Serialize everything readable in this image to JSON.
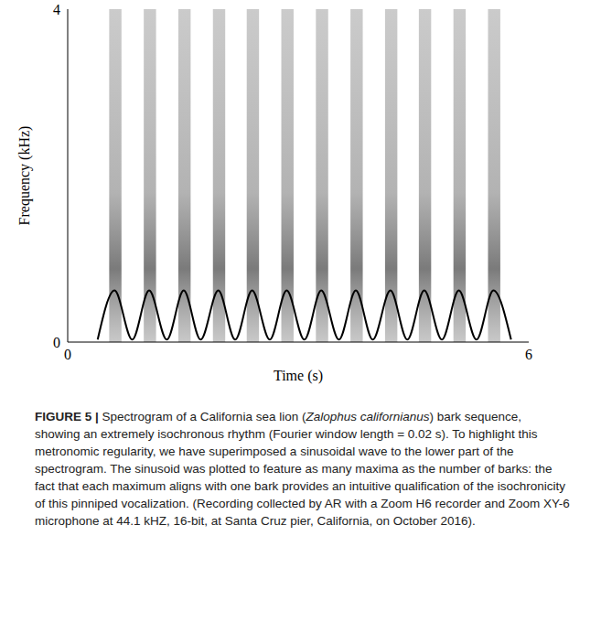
{
  "chart_data": {
    "type": "line",
    "x_label": "Time (s)",
    "y_label": "Frequency (kHz)",
    "x": [
      0.39,
      0.61,
      0.84,
      1.06,
      1.29,
      1.51,
      1.73,
      1.96,
      2.18,
      2.4,
      2.63,
      2.85,
      3.08,
      3.3,
      3.53,
      3.75,
      3.97,
      4.2,
      4.42,
      4.64,
      4.87,
      5.09,
      5.32,
      5.54,
      5.77
    ],
    "values": [
      0.03,
      0.62,
      0.03,
      0.62,
      0.03,
      0.62,
      0.03,
      0.62,
      0.03,
      0.62,
      0.03,
      0.62,
      0.03,
      0.62,
      0.03,
      0.62,
      0.03,
      0.62,
      0.03,
      0.62,
      0.03,
      0.62,
      0.03,
      0.62,
      0.03
    ],
    "color": "#000000",
    "xlim": [
      0,
      6
    ],
    "ylim": [
      0,
      4
    ],
    "xticks": [
      0,
      6
    ],
    "yticks": [
      0,
      4
    ],
    "barks": {
      "start": [
        0.54,
        0.99,
        1.44,
        1.89,
        2.33,
        2.78,
        3.23,
        3.68,
        4.13,
        4.57,
        5.02,
        5.47
      ],
      "end": [
        0.7,
        1.15,
        1.6,
        2.05,
        2.49,
        2.94,
        3.39,
        3.84,
        4.29,
        4.73,
        5.18,
        5.63
      ]
    }
  },
  "caption": {
    "label": "FIGURE 5 |",
    "parts": [
      "Spectrogram of a California sea lion (",
      "Zalophus californianus",
      ") bark sequence, showing an extremely isochronous rhythm (Fourier window length = 0.02 s). To highlight this metronomic regularity, we have superimposed a sinusoidal wave to the lower part of the spectrogram. The sinusoid was plotted to feature as many maxima as the number of barks: the fact that each maximum aligns with one bark provides an intuitive qualification of the isochronicity of this pinniped vocalization. (Recording collected by AR with a Zoom H6 recorder and Zoom XY-6 microphone at 44.1 kHZ, 16-bit, at Santa Cruz pier, California, on October 2016)."
    ]
  }
}
